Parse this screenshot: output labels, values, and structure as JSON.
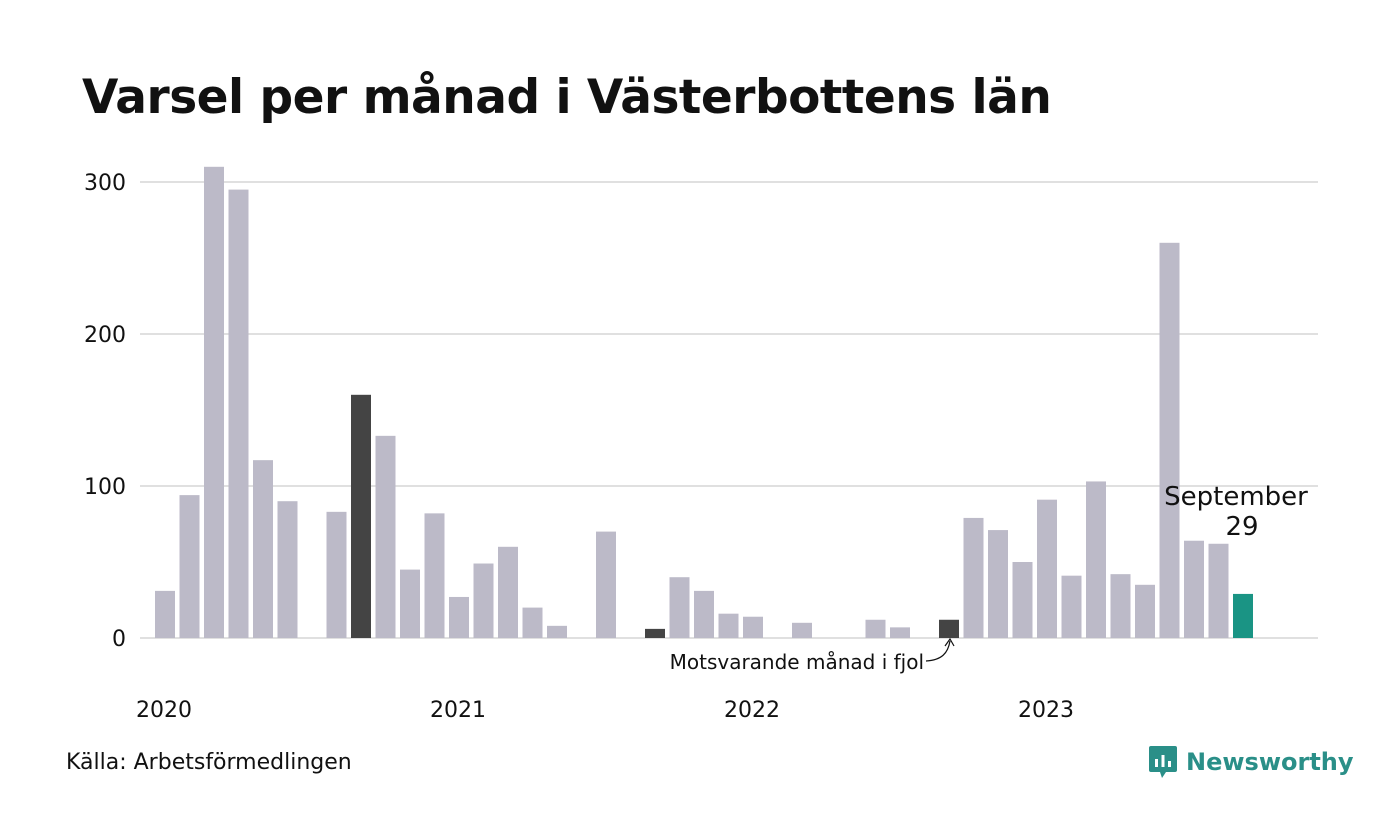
{
  "title": "Varsel per månad i Västerbottens län",
  "source": "Källa: Arbetsförmedlingen",
  "brand": {
    "name": "Newsworthy",
    "icon": "newsworthy-logo-icon"
  },
  "colors": {
    "default": "#bcbac8",
    "previous_year": "#444444",
    "current": "#1a9484",
    "grid": "#e0e0e0",
    "brand": "#2a8f88"
  },
  "annotations": {
    "previous_year_label": "Motsvarande månad i fjol",
    "current_month": "September",
    "current_value": "29"
  },
  "chart_data": {
    "type": "bar",
    "title": "Varsel per månad i Västerbottens län",
    "xlabel": "",
    "ylabel": "",
    "ylim": [
      0,
      310
    ],
    "grid": true,
    "yticks": [
      0,
      100,
      200,
      300
    ],
    "x_tick_labels": [
      {
        "label": "2020",
        "index": 0
      },
      {
        "label": "2021",
        "index": 12
      },
      {
        "label": "2022",
        "index": 24
      },
      {
        "label": "2023",
        "index": 36
      }
    ],
    "categories": [
      "2020-01",
      "2020-02",
      "2020-03",
      "2020-04",
      "2020-05",
      "2020-06",
      "2020-07",
      "2020-08",
      "2020-09",
      "2020-10",
      "2020-11",
      "2020-12",
      "2021-01",
      "2021-02",
      "2021-03",
      "2021-04",
      "2021-05",
      "2021-06",
      "2021-07",
      "2021-08",
      "2021-09",
      "2021-10",
      "2021-11",
      "2021-12",
      "2022-01",
      "2022-02",
      "2022-03",
      "2022-04",
      "2022-05",
      "2022-06",
      "2022-07",
      "2022-08",
      "2022-09",
      "2022-10",
      "2022-11",
      "2022-12",
      "2023-01",
      "2023-02",
      "2023-03",
      "2023-04",
      "2023-05",
      "2023-06",
      "2023-07",
      "2023-08",
      "2023-09"
    ],
    "values": [
      31,
      94,
      310,
      295,
      117,
      90,
      0,
      83,
      160,
      133,
      45,
      82,
      27,
      49,
      60,
      20,
      8,
      0,
      70,
      0,
      6,
      40,
      31,
      16,
      14,
      0,
      10,
      0,
      0,
      12,
      7,
      0,
      12,
      79,
      71,
      50,
      91,
      41,
      103,
      42,
      35,
      260,
      64,
      62,
      29
    ],
    "highlight": [
      {
        "index": 8,
        "role": "previous_year"
      },
      {
        "index": 20,
        "role": "previous_year"
      },
      {
        "index": 32,
        "role": "previous_year"
      },
      {
        "index": 44,
        "role": "current"
      }
    ]
  }
}
